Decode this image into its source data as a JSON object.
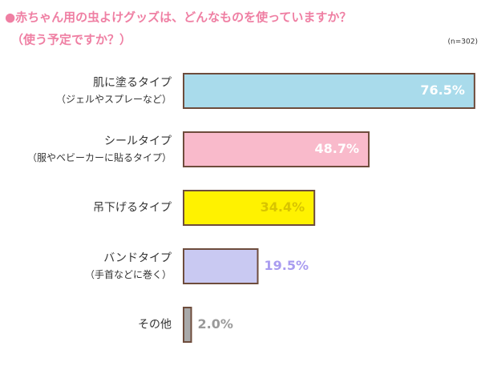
{
  "chart_data": {
    "type": "bar",
    "orientation": "horizontal",
    "title": "●赤ちゃん用の虫よけグッズは、どんなものを使っていますか？",
    "subtitle": "（使う予定ですか？）",
    "note": "(n=302)",
    "categories": [
      "肌に塗るタイプ",
      "シールタイプ",
      "吊下げるタイプ",
      "バンドタイプ",
      "その他"
    ],
    "sublabels": [
      "（ジェルやスプレーなど）",
      "（服やベビーカーに貼るタイプ）",
      null,
      "（手首などに巻く）",
      null
    ],
    "values": [
      76.5,
      48.7,
      34.4,
      19.5,
      2.0
    ],
    "value_labels": [
      "76.5%",
      "48.7%",
      "34.4%",
      "19.5%",
      "2.0%"
    ],
    "colors": [
      "#a9dbeb",
      "#f9bacb",
      "#fff200",
      "#c9c9f2",
      "#a9a9a9"
    ],
    "value_label_colors": [
      "#ffffff",
      "#ffffff",
      "#d8c400",
      "#a99cf0",
      "#9a9a9a"
    ],
    "edge_color": "#6e4c3c",
    "xlim": [
      0,
      78
    ]
  }
}
